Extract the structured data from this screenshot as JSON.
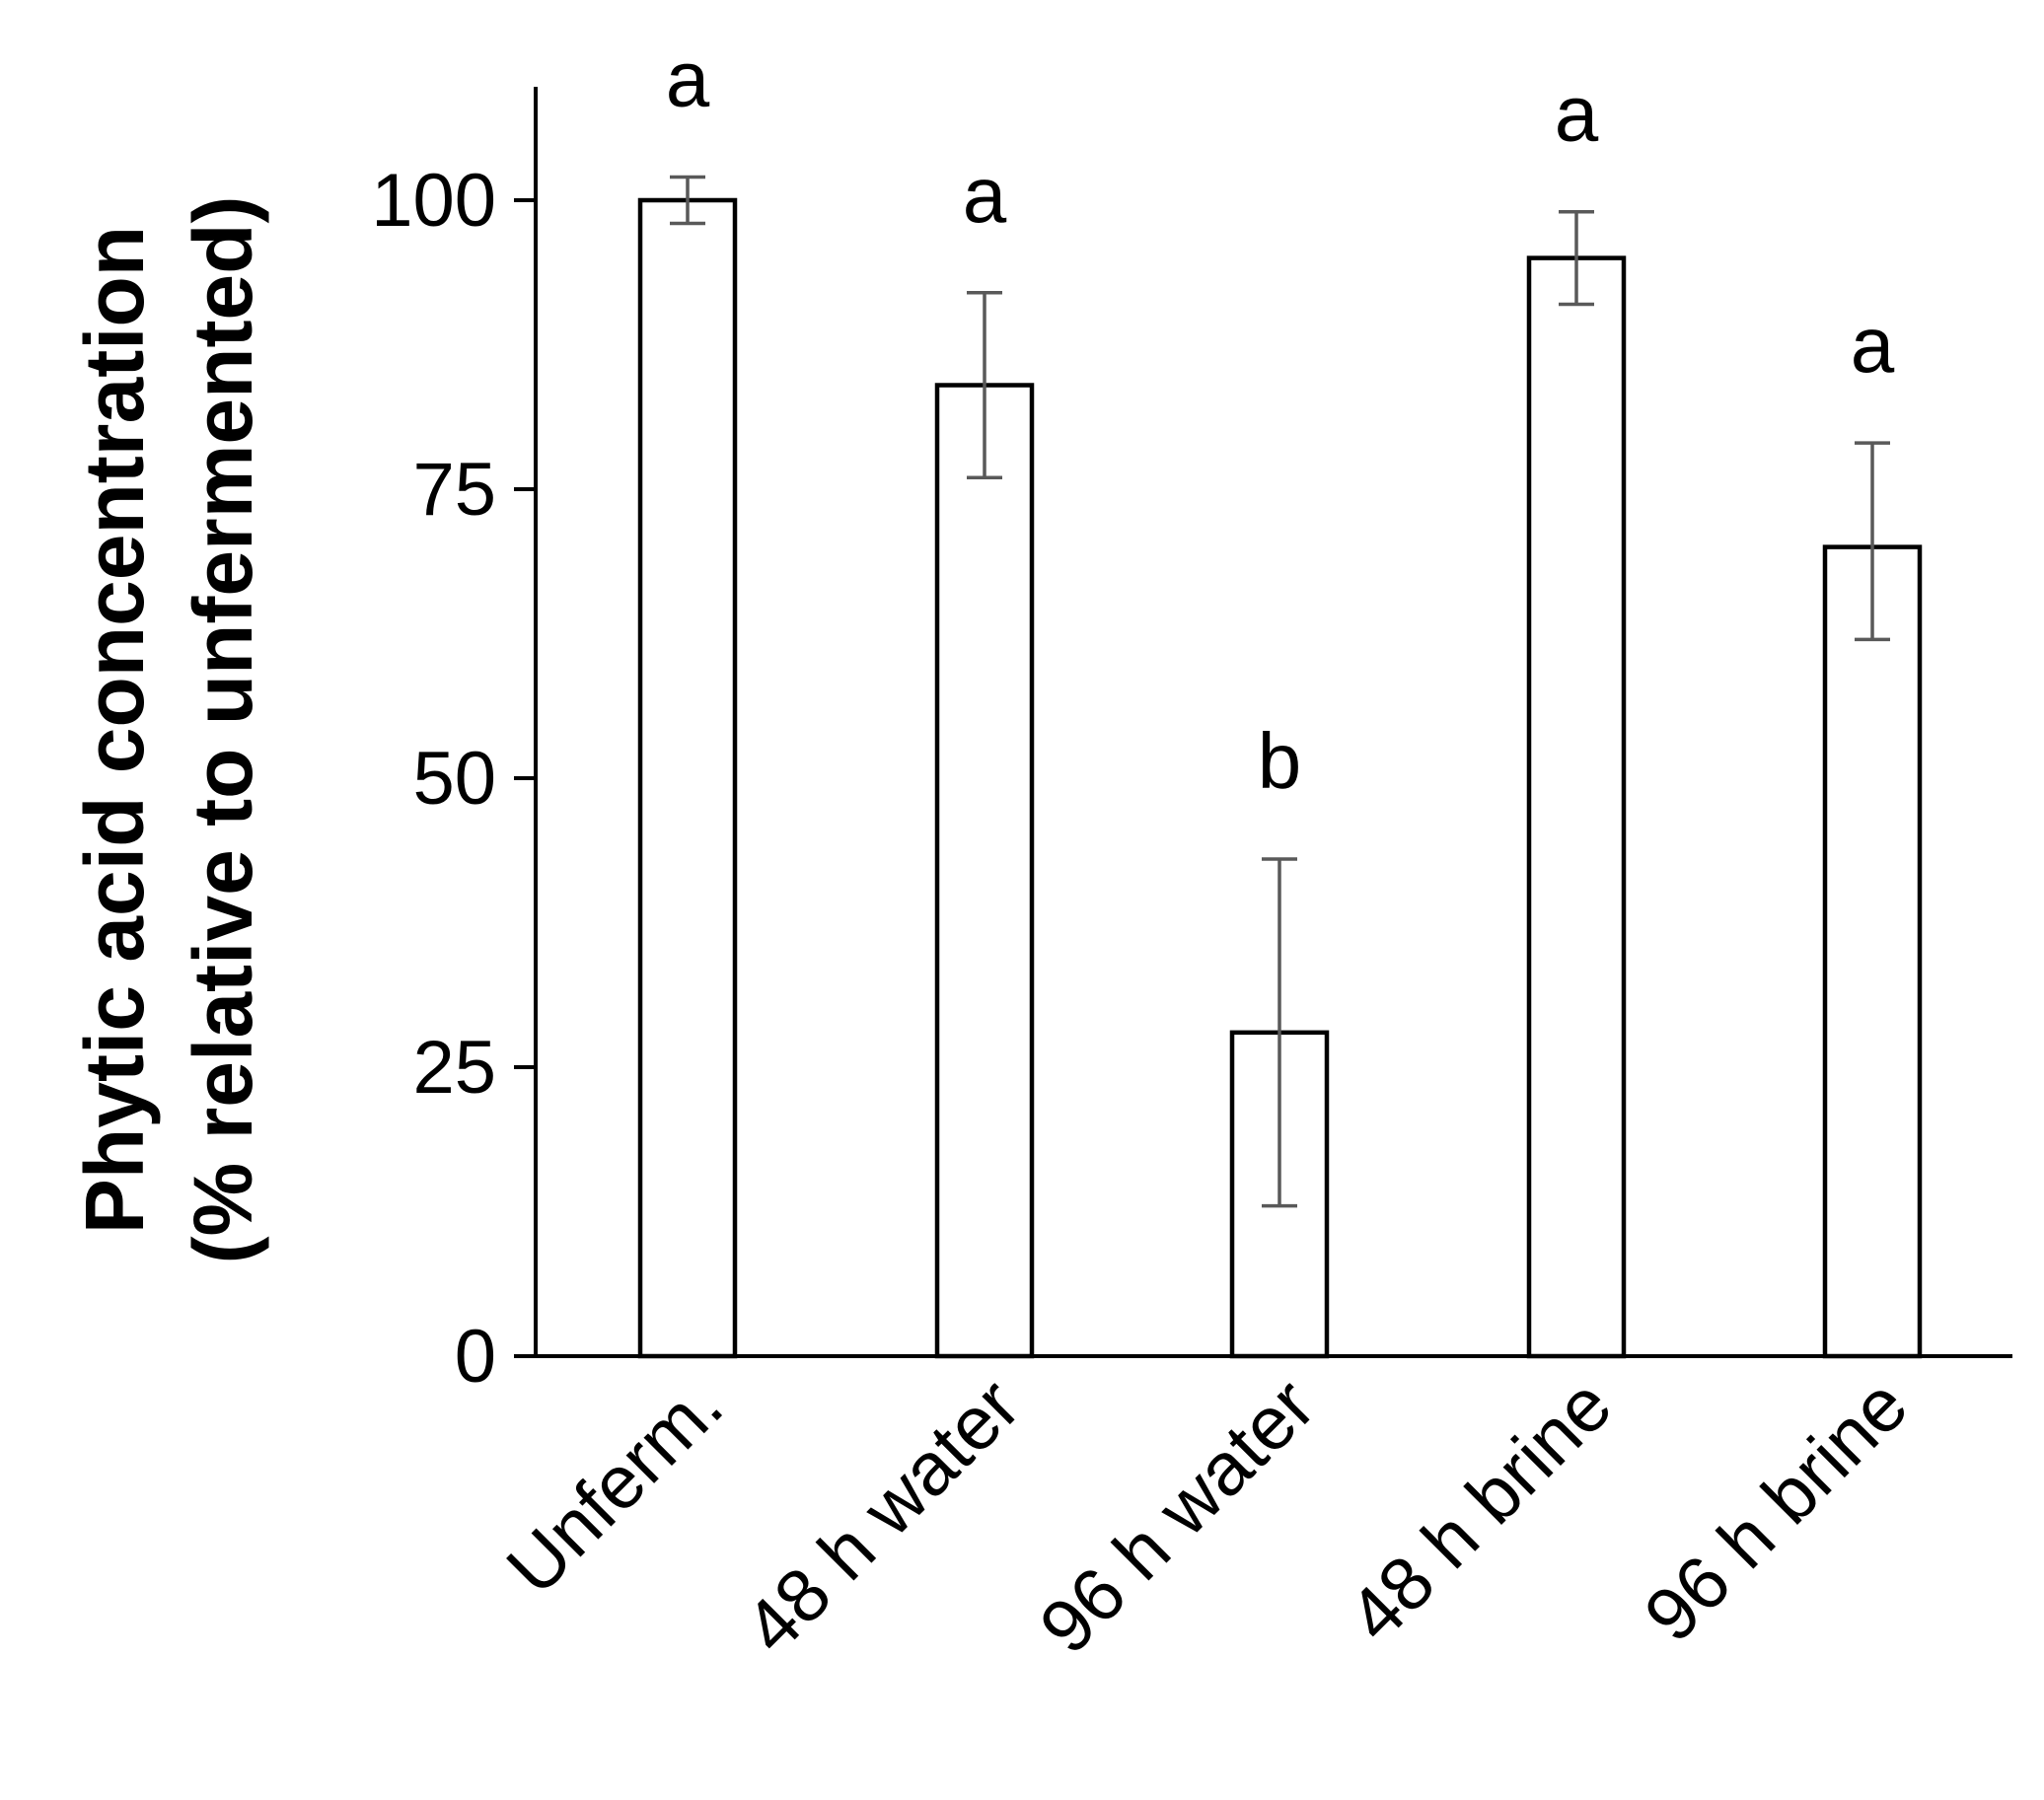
{
  "chart_data": {
    "type": "bar",
    "ylabel_lines": [
      "Phytic acid concentration",
      "(% relative to unfermented)"
    ],
    "categories": [
      "Unferm.",
      "48 h water",
      "96 h water",
      "48 h brine",
      "96 h brine"
    ],
    "values": [
      100,
      84,
      28,
      95,
      70
    ],
    "error_low": [
      98,
      76,
      13,
      91,
      62
    ],
    "error_high": [
      102,
      92,
      43,
      99,
      79
    ],
    "significance": [
      "a",
      "a",
      "b",
      "a",
      "a"
    ],
    "ylim": [
      0,
      112
    ],
    "yticks": [
      0,
      25,
      50,
      75,
      100
    ],
    "ytick_labels": [
      "0",
      "25",
      "50",
      "75",
      "100"
    ],
    "grid": false,
    "legend": "none"
  }
}
